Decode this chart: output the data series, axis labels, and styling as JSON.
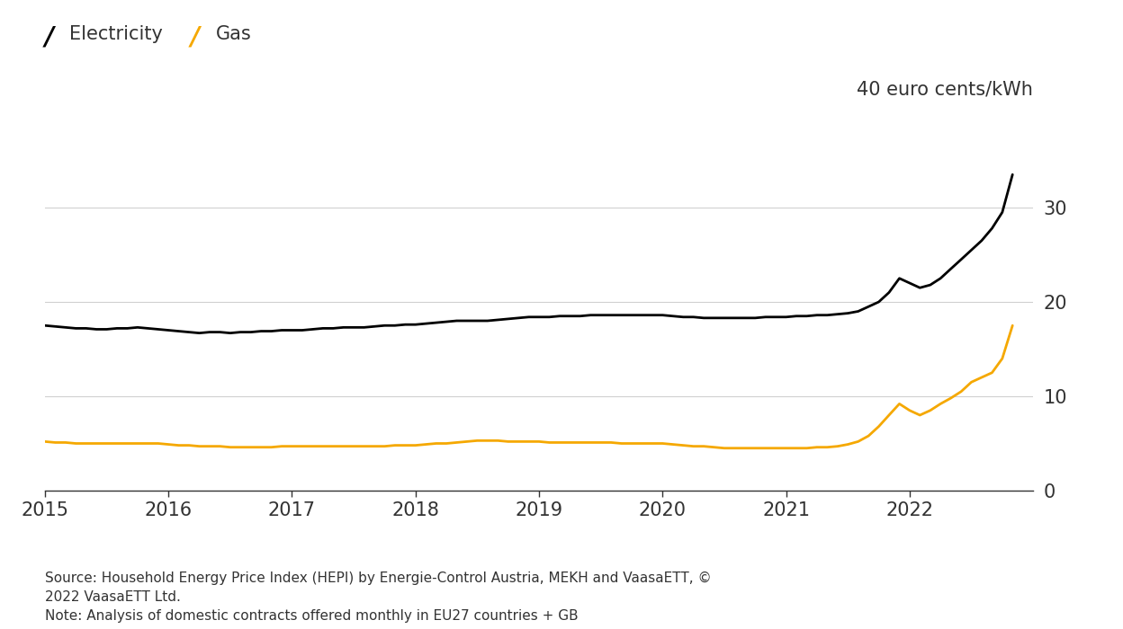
{
  "electricity": {
    "label": "Electricity",
    "color": "#000000",
    "linewidth": 2.0,
    "x": [
      2015.0,
      2015.083,
      2015.167,
      2015.25,
      2015.333,
      2015.417,
      2015.5,
      2015.583,
      2015.667,
      2015.75,
      2015.833,
      2015.917,
      2016.0,
      2016.083,
      2016.167,
      2016.25,
      2016.333,
      2016.417,
      2016.5,
      2016.583,
      2016.667,
      2016.75,
      2016.833,
      2016.917,
      2017.0,
      2017.083,
      2017.167,
      2017.25,
      2017.333,
      2017.417,
      2017.5,
      2017.583,
      2017.667,
      2017.75,
      2017.833,
      2017.917,
      2018.0,
      2018.083,
      2018.167,
      2018.25,
      2018.333,
      2018.417,
      2018.5,
      2018.583,
      2018.667,
      2018.75,
      2018.833,
      2018.917,
      2019.0,
      2019.083,
      2019.167,
      2019.25,
      2019.333,
      2019.417,
      2019.5,
      2019.583,
      2019.667,
      2019.75,
      2019.833,
      2019.917,
      2020.0,
      2020.083,
      2020.167,
      2020.25,
      2020.333,
      2020.417,
      2020.5,
      2020.583,
      2020.667,
      2020.75,
      2020.833,
      2020.917,
      2021.0,
      2021.083,
      2021.167,
      2021.25,
      2021.333,
      2021.417,
      2021.5,
      2021.583,
      2021.667,
      2021.75,
      2021.833,
      2021.917,
      2022.0,
      2022.083,
      2022.167,
      2022.25,
      2022.333,
      2022.417,
      2022.5,
      2022.583,
      2022.667,
      2022.75,
      2022.833
    ],
    "y": [
      17.5,
      17.4,
      17.3,
      17.2,
      17.2,
      17.1,
      17.1,
      17.2,
      17.2,
      17.3,
      17.2,
      17.1,
      17.0,
      16.9,
      16.8,
      16.7,
      16.8,
      16.8,
      16.7,
      16.8,
      16.8,
      16.9,
      16.9,
      17.0,
      17.0,
      17.0,
      17.1,
      17.2,
      17.2,
      17.3,
      17.3,
      17.3,
      17.4,
      17.5,
      17.5,
      17.6,
      17.6,
      17.7,
      17.8,
      17.9,
      18.0,
      18.0,
      18.0,
      18.0,
      18.1,
      18.2,
      18.3,
      18.4,
      18.4,
      18.4,
      18.5,
      18.5,
      18.5,
      18.6,
      18.6,
      18.6,
      18.6,
      18.6,
      18.6,
      18.6,
      18.6,
      18.5,
      18.4,
      18.4,
      18.3,
      18.3,
      18.3,
      18.3,
      18.3,
      18.3,
      18.4,
      18.4,
      18.4,
      18.5,
      18.5,
      18.6,
      18.6,
      18.7,
      18.8,
      19.0,
      19.5,
      20.0,
      21.0,
      22.5,
      22.0,
      21.5,
      21.8,
      22.5,
      23.5,
      24.5,
      25.5,
      26.5,
      27.8,
      29.5,
      33.5
    ]
  },
  "gas": {
    "label": "Gas",
    "color": "#F5A800",
    "linewidth": 2.0,
    "x": [
      2015.0,
      2015.083,
      2015.167,
      2015.25,
      2015.333,
      2015.417,
      2015.5,
      2015.583,
      2015.667,
      2015.75,
      2015.833,
      2015.917,
      2016.0,
      2016.083,
      2016.167,
      2016.25,
      2016.333,
      2016.417,
      2016.5,
      2016.583,
      2016.667,
      2016.75,
      2016.833,
      2016.917,
      2017.0,
      2017.083,
      2017.167,
      2017.25,
      2017.333,
      2017.417,
      2017.5,
      2017.583,
      2017.667,
      2017.75,
      2017.833,
      2017.917,
      2018.0,
      2018.083,
      2018.167,
      2018.25,
      2018.333,
      2018.417,
      2018.5,
      2018.583,
      2018.667,
      2018.75,
      2018.833,
      2018.917,
      2019.0,
      2019.083,
      2019.167,
      2019.25,
      2019.333,
      2019.417,
      2019.5,
      2019.583,
      2019.667,
      2019.75,
      2019.833,
      2019.917,
      2020.0,
      2020.083,
      2020.167,
      2020.25,
      2020.333,
      2020.417,
      2020.5,
      2020.583,
      2020.667,
      2020.75,
      2020.833,
      2020.917,
      2021.0,
      2021.083,
      2021.167,
      2021.25,
      2021.333,
      2021.417,
      2021.5,
      2021.583,
      2021.667,
      2021.75,
      2021.833,
      2021.917,
      2022.0,
      2022.083,
      2022.167,
      2022.25,
      2022.333,
      2022.417,
      2022.5,
      2022.583,
      2022.667,
      2022.75,
      2022.833
    ],
    "y": [
      5.2,
      5.1,
      5.1,
      5.0,
      5.0,
      5.0,
      5.0,
      5.0,
      5.0,
      5.0,
      5.0,
      5.0,
      4.9,
      4.8,
      4.8,
      4.7,
      4.7,
      4.7,
      4.6,
      4.6,
      4.6,
      4.6,
      4.6,
      4.7,
      4.7,
      4.7,
      4.7,
      4.7,
      4.7,
      4.7,
      4.7,
      4.7,
      4.7,
      4.7,
      4.8,
      4.8,
      4.8,
      4.9,
      5.0,
      5.0,
      5.1,
      5.2,
      5.3,
      5.3,
      5.3,
      5.2,
      5.2,
      5.2,
      5.2,
      5.1,
      5.1,
      5.1,
      5.1,
      5.1,
      5.1,
      5.1,
      5.0,
      5.0,
      5.0,
      5.0,
      5.0,
      4.9,
      4.8,
      4.7,
      4.7,
      4.6,
      4.5,
      4.5,
      4.5,
      4.5,
      4.5,
      4.5,
      4.5,
      4.5,
      4.5,
      4.6,
      4.6,
      4.7,
      4.9,
      5.2,
      5.8,
      6.8,
      8.0,
      9.2,
      8.5,
      8.0,
      8.5,
      9.2,
      9.8,
      10.5,
      11.5,
      12.0,
      12.5,
      14.0,
      17.5
    ]
  },
  "xlim": [
    2015.0,
    2023.0
  ],
  "ylim": [
    0,
    40
  ],
  "yticks": [
    0,
    10,
    20,
    30
  ],
  "xticks": [
    2015,
    2016,
    2017,
    2018,
    2019,
    2020,
    2021,
    2022
  ],
  "ylabel": "40 euro cents/kWh",
  "source_text": "Source: Household Energy Price Index (HEPI) by Energie-Control Austria, MEKH and VaasaETT, ©\n2022 VaasaETT Ltd.\nNote: Analysis of domestic contracts offered monthly in EU27 countries + GB",
  "background_color": "#ffffff",
  "grid_color": "#d0d0d0",
  "tick_color": "#333333",
  "label_color": "#333333"
}
